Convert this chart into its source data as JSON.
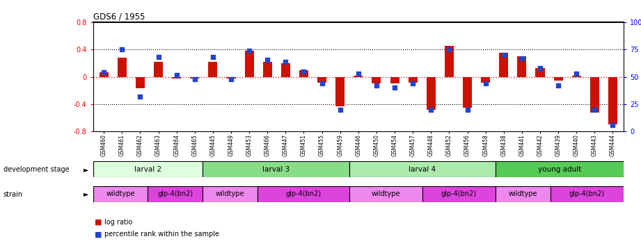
{
  "title": "GDS6 / 1955",
  "samples": [
    "GSM460",
    "GSM461",
    "GSM462",
    "GSM463",
    "GSM464",
    "GSM465",
    "GSM445",
    "GSM449",
    "GSM453",
    "GSM466",
    "GSM447",
    "GSM451",
    "GSM455",
    "GSM459",
    "GSM446",
    "GSM450",
    "GSM454",
    "GSM457",
    "GSM448",
    "GSM452",
    "GSM456",
    "GSM458",
    "GSM438",
    "GSM441",
    "GSM442",
    "GSM439",
    "GSM440",
    "GSM443",
    "GSM444"
  ],
  "log_ratio": [
    0.07,
    0.28,
    -0.17,
    0.22,
    -0.02,
    -0.02,
    0.22,
    -0.02,
    0.38,
    0.22,
    0.2,
    0.1,
    -0.08,
    -0.43,
    0.02,
    -0.1,
    -0.1,
    -0.08,
    -0.48,
    0.45,
    -0.45,
    -0.08,
    0.35,
    0.3,
    0.13,
    -0.05,
    0.02,
    -0.52,
    -0.7
  ],
  "percentile": [
    54,
    75,
    32,
    68,
    52,
    48,
    68,
    48,
    74,
    66,
    64,
    55,
    44,
    20,
    53,
    42,
    40,
    44,
    20,
    75,
    20,
    44,
    70,
    67,
    58,
    42,
    53,
    20,
    6
  ],
  "dev_stages": [
    {
      "label": "larval 2",
      "start": 0,
      "end": 6,
      "color": "#ddffdd"
    },
    {
      "label": "larval 3",
      "start": 6,
      "end": 14,
      "color": "#88dd88"
    },
    {
      "label": "larval 4",
      "start": 14,
      "end": 22,
      "color": "#aaeaaa"
    },
    {
      "label": "young adult",
      "start": 22,
      "end": 29,
      "color": "#55cc55"
    }
  ],
  "strains": [
    {
      "label": "wildtype",
      "start": 0,
      "end": 3,
      "color": "#ee88ee"
    },
    {
      "label": "glp-4(bn2)",
      "start": 3,
      "end": 6,
      "color": "#dd44dd"
    },
    {
      "label": "wildtype",
      "start": 6,
      "end": 9,
      "color": "#ee88ee"
    },
    {
      "label": "glp-4(bn2)",
      "start": 9,
      "end": 14,
      "color": "#dd44dd"
    },
    {
      "label": "wildtype",
      "start": 14,
      "end": 18,
      "color": "#ee88ee"
    },
    {
      "label": "glp-4(bn2)",
      "start": 18,
      "end": 22,
      "color": "#dd44dd"
    },
    {
      "label": "wildtype",
      "start": 22,
      "end": 25,
      "color": "#ee88ee"
    },
    {
      "label": "glp-4(bn2)",
      "start": 25,
      "end": 29,
      "color": "#dd44dd"
    }
  ],
  "ylim": [
    -0.8,
    0.8
  ],
  "yticks_left": [
    -0.8,
    -0.4,
    0.0,
    0.4,
    0.8
  ],
  "yticks_right": [
    0,
    25,
    50,
    75,
    100
  ],
  "bar_color": "#cc1100",
  "dot_color": "#2244cc",
  "hline_color": "#dd2222",
  "bg_color": "#ffffff"
}
